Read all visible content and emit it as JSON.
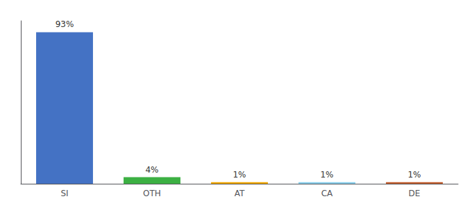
{
  "chart_data": {
    "type": "bar",
    "categories": [
      "SI",
      "OTH",
      "AT",
      "CA",
      "DE"
    ],
    "values": [
      93,
      4,
      1,
      1,
      1
    ],
    "value_labels": [
      "93%",
      "4%",
      "1%",
      "1%",
      "1%"
    ],
    "colors": [
      "#4472c4",
      "#3cb043",
      "#f0a500",
      "#87ceeb",
      "#c05a29"
    ],
    "ylim": [
      0,
      100
    ],
    "grid": false,
    "data_labels": true,
    "tick_labels": "x"
  }
}
